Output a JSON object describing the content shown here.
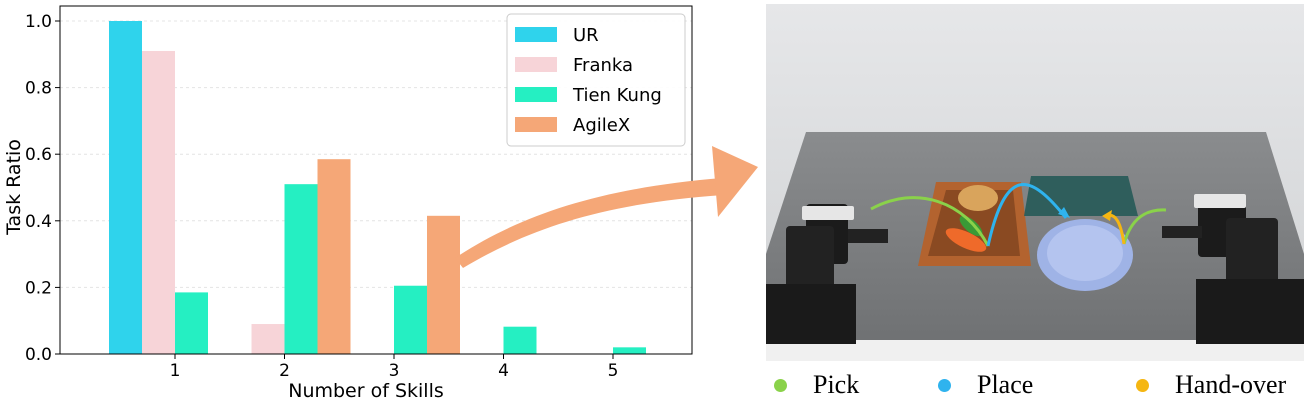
{
  "chart_data": {
    "type": "bar",
    "xlabel": "Number of Skills",
    "ylabel": "Task Ratio",
    "categories": [
      "1",
      "2",
      "3",
      "4",
      "5"
    ],
    "ylim": [
      0,
      1.0
    ],
    "yticks": [
      "0.0",
      "0.2",
      "0.4",
      "0.6",
      "0.8",
      "1.0"
    ],
    "grid": true,
    "legend_position": "top-right",
    "series": [
      {
        "name": "UR",
        "color": "#2fd3ec",
        "values": [
          1.0,
          0,
          0,
          0,
          0
        ]
      },
      {
        "name": "Franka",
        "color": "#f7d4d8",
        "values": [
          0.91,
          0.09,
          0,
          0,
          0
        ]
      },
      {
        "name": "Tien Kung",
        "color": "#25efc2",
        "values": [
          0.185,
          0.51,
          0.205,
          0.082,
          0.02
        ]
      },
      {
        "name": "AgileX",
        "color": "#f5a777",
        "values": [
          0,
          0.585,
          0.415,
          0,
          0
        ]
      }
    ]
  },
  "scene_legend": {
    "items": [
      {
        "label": "Pick",
        "color": "#8ad24a"
      },
      {
        "label": "Place",
        "color": "#2fb3ee"
      },
      {
        "label": "Hand-over",
        "color": "#f5b612"
      }
    ]
  },
  "colors": {
    "arrow": "#f5a777"
  }
}
